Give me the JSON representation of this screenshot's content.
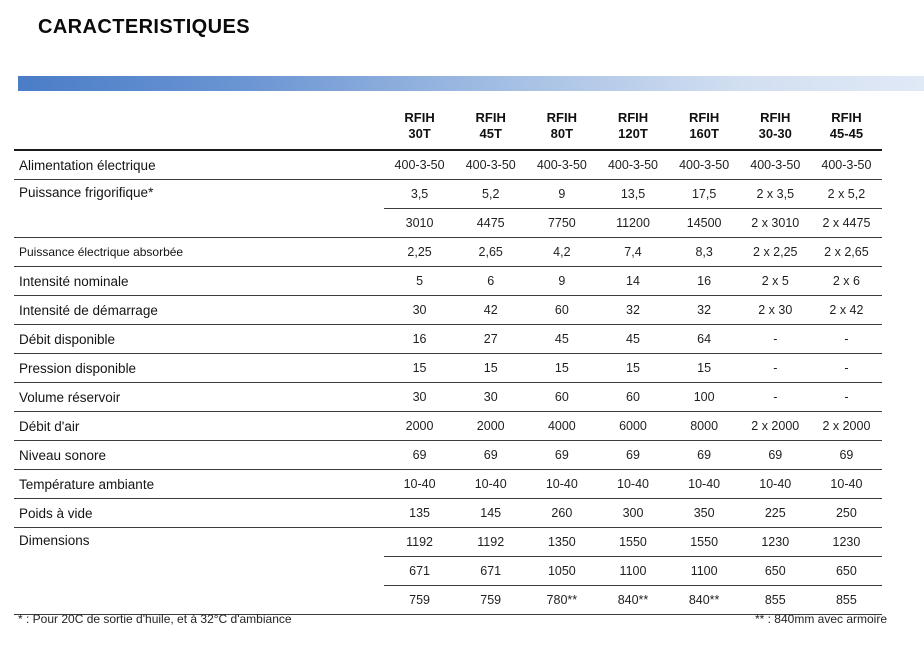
{
  "title": "CARACTERISTIQUES",
  "table": {
    "columns": [
      {
        "brand": "RFIH",
        "model": "30T"
      },
      {
        "brand": "RFIH",
        "model": "45T"
      },
      {
        "brand": "RFIH",
        "model": "80T"
      },
      {
        "brand": "RFIH",
        "model": "120T"
      },
      {
        "brand": "RFIH",
        "model": "160T"
      },
      {
        "brand": "RFIH",
        "model": "30-30"
      },
      {
        "brand": "RFIH",
        "model": "45-45"
      }
    ],
    "rows": [
      {
        "label": "Alimentation électrique",
        "values": [
          "400-3-50",
          "400-3-50",
          "400-3-50",
          "400-3-50",
          "400-3-50",
          "400-3-50",
          "400-3-50"
        ]
      },
      {
        "label": "Puissance frigorifique*",
        "rowspan": 2,
        "values": [
          "3,5",
          "5,2",
          "9",
          "13,5",
          "17,5",
          "2 x 3,5",
          "2 x 5,2"
        ]
      },
      {
        "continuation": true,
        "values": [
          "3010",
          "4475",
          "7750",
          "11200",
          "14500",
          "2 x 3010",
          "2 x 4475"
        ]
      },
      {
        "label": "Puissance électrique absorbée",
        "small": true,
        "values": [
          "2,25",
          "2,65",
          "4,2",
          "7,4",
          "8,3",
          "2 x 2,25",
          "2 x 2,65"
        ]
      },
      {
        "label": "Intensité nominale",
        "values": [
          "5",
          "6",
          "9",
          "14",
          "16",
          "2 x 5",
          "2 x 6"
        ]
      },
      {
        "label": "Intensité de démarrage",
        "values": [
          "30",
          "42",
          "60",
          "32",
          "32",
          "2 x 30",
          "2 x 42"
        ]
      },
      {
        "label": "Débit disponible",
        "values": [
          "16",
          "27",
          "45",
          "45",
          "64",
          "-",
          "-"
        ]
      },
      {
        "label": "Pression disponible",
        "values": [
          "15",
          "15",
          "15",
          "15",
          "15",
          "-",
          "-"
        ]
      },
      {
        "label": "Volume réservoir",
        "values": [
          "30",
          "30",
          "60",
          "60",
          "100",
          "-",
          "-"
        ]
      },
      {
        "label": "Débit d'air",
        "values": [
          "2000",
          "2000",
          "4000",
          "6000",
          "8000",
          "2 x 2000",
          "2 x 2000"
        ]
      },
      {
        "label": "Niveau sonore",
        "values": [
          "69",
          "69",
          "69",
          "69",
          "69",
          "69",
          "69"
        ]
      },
      {
        "label": "Température ambiante",
        "values": [
          "10-40",
          "10-40",
          "10-40",
          "10-40",
          "10-40",
          "10-40",
          "10-40"
        ]
      },
      {
        "label": "Poids à vide",
        "values": [
          "135",
          "145",
          "260",
          "300",
          "350",
          "225",
          "250"
        ]
      },
      {
        "label": "Dimensions",
        "rowspan": 3,
        "values": [
          "1192",
          "1192",
          "1350",
          "1550",
          "1550",
          "1230",
          "1230"
        ]
      },
      {
        "continuation": true,
        "values": [
          "671",
          "671",
          "1050",
          "1100",
          "1100",
          "650",
          "650"
        ]
      },
      {
        "continuation": true,
        "values": [
          "759",
          "759",
          "780**",
          "840**",
          "840**",
          "855",
          "855"
        ]
      }
    ]
  },
  "footnotes": {
    "left": "* : Pour 20C de sortie d'huile, et à 32°C d'ambiance",
    "right": "** : 840mm avec armoire"
  },
  "colors": {
    "bar_gradient_start": "#4a7dc7",
    "bar_gradient_end": "#e0e9f6",
    "text": "#1f1f1f",
    "rule": "#3c3c3c"
  }
}
